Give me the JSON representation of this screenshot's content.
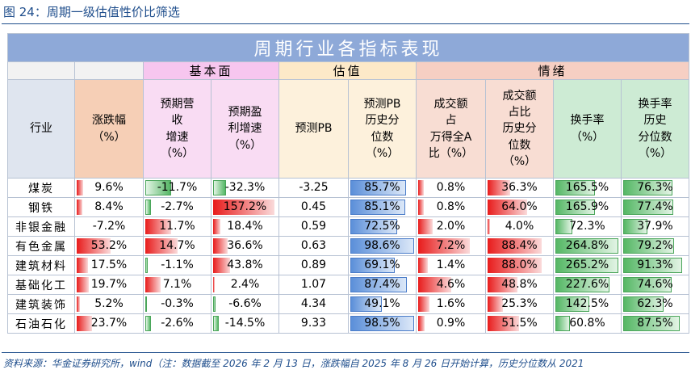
{
  "caption": "图 24：周期一级估值性价比筛选",
  "table_title": "周期行业各指标表现",
  "groups": {
    "basic": "基本面",
    "valuation": "估值",
    "sentiment": "情绪"
  },
  "headers": {
    "industry": "行业",
    "change": [
      "涨跌幅",
      "（%）"
    ],
    "rev_growth": [
      "预期营",
      "收",
      "增速",
      "（%）"
    ],
    "profit_growth": [
      "预期盈",
      "利增速",
      "（%）"
    ],
    "pb": [
      "预测PB"
    ],
    "pb_pct": [
      "预测PB",
      "历史分",
      "位数",
      "（%）"
    ],
    "vol_share": [
      "成交额",
      "占",
      "万得全A",
      "比（%）"
    ],
    "vol_pct": [
      "成交额",
      "占比",
      "历史分",
      "位数",
      "（%）"
    ],
    "turnover": [
      "换手率",
      "（%）"
    ],
    "turnover_pct": [
      "换手率",
      "历史",
      "分位数",
      "（%）"
    ]
  },
  "rows": [
    {
      "industry": "煤炭",
      "change": "9.6%",
      "change_v": 9.6,
      "rev": "-11.7%",
      "rev_v": -11.7,
      "profit": "-32.3%",
      "profit_v": -32.3,
      "pb": "-3.25",
      "pb_pct": "85.7%",
      "pb_pct_v": 85.7,
      "vol": "0.8%",
      "vol_v": 0.8,
      "vol_pct": "36.3%",
      "vol_pct_v": 36.3,
      "turn": "165.5%",
      "turn_v": 165.5,
      "turn_pct": "76.3%",
      "turn_pct_v": 76.3
    },
    {
      "industry": "钢铁",
      "change": "8.4%",
      "change_v": 8.4,
      "rev": "-2.7%",
      "rev_v": -2.7,
      "profit": "157.2%",
      "profit_v": 157.2,
      "pb": "0.45",
      "pb_pct": "85.1%",
      "pb_pct_v": 85.1,
      "vol": "0.8%",
      "vol_v": 0.8,
      "vol_pct": "64.0%",
      "vol_pct_v": 64.0,
      "turn": "165.9%",
      "turn_v": 165.9,
      "turn_pct": "77.4%",
      "turn_pct_v": 77.4
    },
    {
      "industry": "非银金融",
      "change": "-7.2%",
      "change_v": -7.2,
      "rev": "11.7%",
      "rev_v": 11.7,
      "profit": "18.4%",
      "profit_v": 18.4,
      "pb": "0.59",
      "pb_pct": "72.5%",
      "pb_pct_v": 72.5,
      "vol": "2.0%",
      "vol_v": 2.0,
      "vol_pct": "4.0%",
      "vol_pct_v": 4.0,
      "turn": "72.3%",
      "turn_v": 72.3,
      "turn_pct": "37.9%",
      "turn_pct_v": 37.9
    },
    {
      "industry": "有色金属",
      "change": "53.2%",
      "change_v": 53.2,
      "rev": "14.7%",
      "rev_v": 14.7,
      "profit": "36.6%",
      "profit_v": 36.6,
      "pb": "0.63",
      "pb_pct": "98.6%",
      "pb_pct_v": 98.6,
      "vol": "7.2%",
      "vol_v": 7.2,
      "vol_pct": "88.4%",
      "vol_pct_v": 88.4,
      "turn": "264.8%",
      "turn_v": 264.8,
      "turn_pct": "79.2%",
      "turn_pct_v": 79.2
    },
    {
      "industry": "建筑材料",
      "change": "17.5%",
      "change_v": 17.5,
      "rev": "-1.1%",
      "rev_v": -1.1,
      "profit": "43.8%",
      "profit_v": 43.8,
      "pb": "0.89",
      "pb_pct": "69.1%",
      "pb_pct_v": 69.1,
      "vol": "1.4%",
      "vol_v": 1.4,
      "vol_pct": "88.0%",
      "vol_pct_v": 88.0,
      "turn": "265.2%",
      "turn_v": 265.2,
      "turn_pct": "91.3%",
      "turn_pct_v": 91.3
    },
    {
      "industry": "基础化工",
      "change": "19.7%",
      "change_v": 19.7,
      "rev": "7.1%",
      "rev_v": 7.1,
      "profit": "2.4%",
      "profit_v": 2.4,
      "pb": "1.07",
      "pb_pct": "87.4%",
      "pb_pct_v": 87.4,
      "vol": "4.6%",
      "vol_v": 4.6,
      "vol_pct": "48.8%",
      "vol_pct_v": 48.8,
      "turn": "227.6%",
      "turn_v": 227.6,
      "turn_pct": "74.6%",
      "turn_pct_v": 74.6
    },
    {
      "industry": "建筑装饰",
      "change": "5.2%",
      "change_v": 5.2,
      "rev": "-0.3%",
      "rev_v": -0.3,
      "profit": "-6.6%",
      "profit_v": -6.6,
      "pb": "4.34",
      "pb_pct": "49.1%",
      "pb_pct_v": 49.1,
      "vol": "1.6%",
      "vol_v": 1.6,
      "vol_pct": "25.3%",
      "vol_pct_v": 25.3,
      "turn": "142.5%",
      "turn_v": 142.5,
      "turn_pct": "62.3%",
      "turn_pct_v": 62.3
    },
    {
      "industry": "石油石化",
      "change": "23.7%",
      "change_v": 23.7,
      "rev": "-2.6%",
      "rev_v": -2.6,
      "profit": "-14.5%",
      "profit_v": -14.5,
      "pb": "9.33",
      "pb_pct": "98.5%",
      "pb_pct_v": 98.5,
      "vol": "0.9%",
      "vol_v": 0.9,
      "vol_pct": "51.5%",
      "vol_pct_v": 51.5,
      "turn": "60.8%",
      "turn_v": 60.8,
      "turn_pct": "87.5%",
      "turn_pct_v": 87.5
    }
  ],
  "source": "资料来源：华金证券研究所，wind（注：数据截至 2026 年 2 月 13 日，涨跌幅自 2025 年 8 月 26 日开始计算，历史分位数从 2021",
  "colors": {
    "title_bg": "#8ea9d8",
    "positive_bar": "#e81c1c",
    "negative_bar": "#55b765",
    "percentile_bar": "#5b8fd9",
    "turnover_bar": "#55b765"
  }
}
